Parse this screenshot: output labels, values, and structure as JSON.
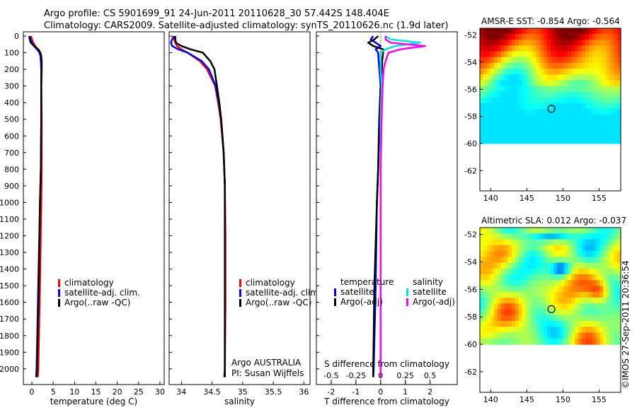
{
  "header": {
    "line1": "Argo profile: CS 5901699_91 24-Jun-2011 20110628_30 57.442S 148.404E",
    "line2": "Climatology: CARS2009. Satellite-adjusted climatology: synTS_20110626.nc (1.9d later)"
  },
  "depth_ticks": [
    0,
    100,
    200,
    300,
    400,
    500,
    600,
    700,
    800,
    900,
    1000,
    1100,
    1200,
    1300,
    1400,
    1500,
    1600,
    1700,
    1800,
    1900,
    2000
  ],
  "colors": {
    "climatology": "#ff0000",
    "satellite": "#0000ff",
    "argo": "#000000",
    "cyan": "#00e5ee",
    "magenta": "#ff00ff"
  },
  "chart_data": [
    {
      "type": "line",
      "xlabel": "temperature (deg C)",
      "xlim": [
        -2,
        31
      ],
      "ylim": [
        2060,
        0
      ],
      "xticks": [
        0,
        5,
        10,
        15,
        20,
        25,
        30
      ],
      "legend": [
        "climatology",
        "satellite-adj. clim.",
        "Argo(..raw -QC)"
      ],
      "series": [
        {
          "name": "climatology",
          "color": "#ff0000",
          "depth": [
            0,
            20,
            40,
            60,
            80,
            100,
            120,
            150,
            200,
            300,
            500,
            800,
            1000,
            1500,
            2000,
            2050
          ],
          "values": [
            -0.2,
            0.0,
            0.3,
            0.8,
            1.3,
            1.9,
            2.1,
            2.2,
            2.2,
            2.2,
            2.3,
            2.3,
            2.2,
            1.9,
            1.5,
            1.4
          ]
        },
        {
          "name": "satellite-adj. clim.",
          "color": "#0000ff",
          "depth": [
            0,
            20,
            40,
            60,
            80,
            100,
            120,
            150,
            200,
            300,
            500,
            800,
            1000,
            1500,
            2000,
            2050
          ],
          "values": [
            -0.5,
            -0.3,
            0.0,
            0.5,
            1.2,
            1.8,
            2.0,
            2.1,
            2.2,
            2.2,
            2.2,
            2.1,
            1.9,
            1.5,
            1.1,
            1.0
          ]
        },
        {
          "name": "Argo(..raw -QC)",
          "color": "#000000",
          "depth": [
            0,
            20,
            40,
            60,
            80,
            100,
            120,
            150,
            200,
            300,
            500,
            800,
            1000,
            1500,
            2000,
            2050
          ],
          "values": [
            -0.6,
            -0.5,
            -0.3,
            0.5,
            1.5,
            2.0,
            2.2,
            2.3,
            2.3,
            2.2,
            2.2,
            2.1,
            1.9,
            1.6,
            1.2,
            1.1
          ]
        }
      ]
    },
    {
      "type": "line",
      "xlabel": "salinity",
      "xlim": [
        33.8,
        36.1
      ],
      "ylim": [
        2060,
        0
      ],
      "xticks": [
        34,
        34.5,
        35,
        35.5,
        36
      ],
      "xticklabels": [
        "34",
        "34.5",
        "35",
        "35.5",
        "36"
      ],
      "legend": [
        "climatology",
        "satellite-adj. clim.",
        "Argo(..raw -QC)"
      ],
      "series": [
        {
          "name": "climatology",
          "color": "#ff0000",
          "depth": [
            0,
            20,
            40,
            60,
            80,
            100,
            150,
            200,
            300,
            400,
            500,
            700,
            900,
            1200,
            1600,
            2000,
            2050
          ],
          "values": [
            33.87,
            33.88,
            33.9,
            33.93,
            34.0,
            34.1,
            34.3,
            34.42,
            34.55,
            34.6,
            34.64,
            34.69,
            34.71,
            34.72,
            34.72,
            34.71,
            34.71
          ]
        },
        {
          "name": "satellite-adj. clim.",
          "color": "#0000ff",
          "depth": [
            0,
            20,
            40,
            60,
            80,
            100,
            150,
            200,
            300,
            400,
            500,
            700,
            900,
            1200,
            1600,
            2000,
            2050
          ],
          "values": [
            33.87,
            33.85,
            33.83,
            33.85,
            33.95,
            34.1,
            34.33,
            34.45,
            34.56,
            34.61,
            34.65,
            34.69,
            34.71,
            34.71,
            34.71,
            34.71,
            34.7
          ]
        },
        {
          "name": "Argo(..raw -QC)",
          "color": "#000000",
          "depth": [
            0,
            20,
            40,
            60,
            80,
            100,
            150,
            200,
            300,
            400,
            500,
            700,
            900,
            1200,
            1600,
            2000,
            2050
          ],
          "values": [
            33.9,
            33.9,
            33.91,
            34.0,
            34.15,
            34.35,
            34.47,
            34.54,
            34.58,
            34.62,
            34.65,
            34.69,
            34.71,
            34.71,
            34.71,
            34.71,
            34.71
          ]
        }
      ]
    },
    {
      "type": "line",
      "xlabel": "T difference from climatology",
      "xlabel_top": "S difference from climatology",
      "xlim": [
        -2.6,
        3.1
      ],
      "ylim": [
        2060,
        0
      ],
      "xticks": [
        -2,
        -1,
        0,
        1,
        2
      ],
      "top_ticks": [
        -0.5,
        -0.25,
        0,
        0.25,
        0.5
      ],
      "top_ticklabels": [
        "-0.5",
        "-0.25",
        "0",
        "0.25",
        "0.5"
      ],
      "s_scale": 4,
      "legend_left_title": "temperature",
      "legend_right_title": "salinity",
      "legend": [
        "satellite",
        "Argo(-adj)",
        "satellite",
        "Argo(-adj)"
      ],
      "series": [
        {
          "name": "temperature satellite",
          "color": "#0000ff",
          "depth": [
            0,
            20,
            40,
            60,
            80,
            100,
            150,
            200,
            300,
            500,
            800,
            1000,
            1500,
            2000,
            2050
          ],
          "values": [
            -0.3,
            -0.4,
            -0.2,
            0.0,
            -0.2,
            -0.1,
            -0.08,
            -0.05,
            0.0,
            -0.06,
            -0.1,
            -0.15,
            -0.2,
            -0.28,
            -0.3
          ]
        },
        {
          "name": "temperature Argo(-adj)",
          "color": "#000000",
          "depth": [
            0,
            20,
            40,
            60,
            80,
            100,
            150,
            200,
            300,
            500,
            800,
            1000,
            1500,
            2000,
            2050
          ],
          "values": [
            -0.1,
            -0.25,
            -0.5,
            -0.3,
            0.1,
            0.1,
            0.06,
            0.05,
            0.0,
            -0.05,
            -0.1,
            -0.15,
            -0.25,
            -0.3,
            -0.3
          ]
        },
        {
          "name": "salinity satellite",
          "color": "#00e5ee",
          "depth": [
            0,
            20,
            40,
            60,
            80,
            100,
            150,
            200,
            300,
            500,
            800,
            1000,
            1500,
            2000,
            2050
          ],
          "values": [
            0.05,
            0.1,
            0.4,
            0.15,
            0.05,
            0.0,
            0.0,
            0.0,
            0.01,
            0.0,
            0.0,
            0.0,
            0.0,
            0.0,
            0.0
          ]
        },
        {
          "name": "salinity Argo(-adj)",
          "color": "#ff00ff",
          "depth": [
            0,
            20,
            40,
            60,
            80,
            100,
            150,
            200,
            300,
            500,
            800,
            1000,
            1500,
            2000,
            2050
          ],
          "values": [
            0.05,
            0.05,
            0.1,
            0.45,
            0.2,
            0.08,
            0.05,
            0.03,
            0.02,
            0.01,
            0.0,
            0.0,
            0.0,
            0.0,
            0.0
          ]
        }
      ]
    },
    {
      "type": "heatmap",
      "title": "AMSR-E SST: -0.854 Argo: -0.564",
      "xlim": [
        138.5,
        158
      ],
      "ylim": [
        -63.5,
        -51.5
      ],
      "xticks": [
        140,
        145,
        150,
        155
      ],
      "yticks": [
        -52,
        -54,
        -56,
        -58,
        -60,
        -62
      ],
      "data_extent": {
        "lon": [
          138.5,
          158
        ],
        "lat": [
          -60,
          -51.5
        ]
      },
      "marker": {
        "lon": 148.4,
        "lat": -57.44
      },
      "colormap": "jet"
    },
    {
      "type": "heatmap",
      "title": "Altimetric SLA: 0.012 Argo: -0.037",
      "xlim": [
        138.5,
        158
      ],
      "ylim": [
        -63.5,
        -51.5
      ],
      "xticks": [
        140,
        145,
        150,
        155
      ],
      "yticks": [
        -52,
        -54,
        -56,
        -58,
        -60,
        -62
      ],
      "data_extent": {
        "lon": [
          138.5,
          158
        ],
        "lat": [
          -60,
          -51.5
        ]
      },
      "marker": {
        "lon": 148.4,
        "lat": -57.44
      },
      "colormap": "jet"
    }
  ],
  "annotations": {
    "float_info_line1": "Argo AUSTRALIA",
    "float_info_line2": "PI: Susan Wijffels",
    "credit": "©IMOS 27-Sep-2011 20:36:54"
  }
}
